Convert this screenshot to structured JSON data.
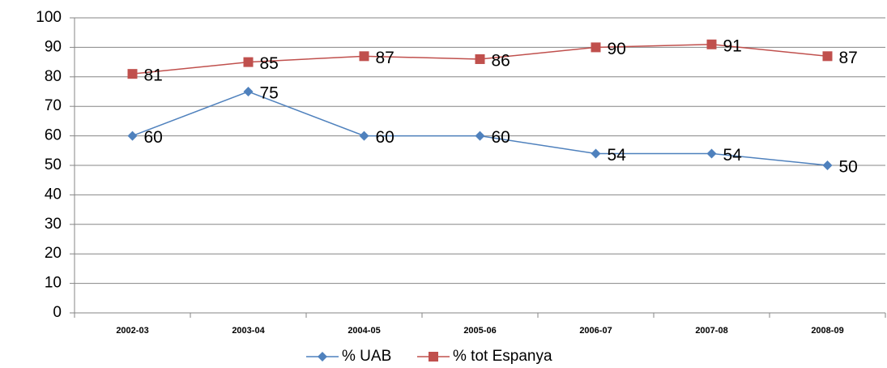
{
  "chart_data": {
    "type": "line",
    "categories": [
      "2002-03",
      "2003-04",
      "2004-05",
      "2005-06",
      "2006-07",
      "2007-08",
      "2008-09"
    ],
    "series": [
      {
        "name": "% UAB",
        "color": "#4f81bd",
        "marker": "diamond",
        "values": [
          60,
          75,
          60,
          60,
          54,
          54,
          50
        ]
      },
      {
        "name": "% tot Espanya",
        "color": "#c0504d",
        "marker": "square",
        "values": [
          81,
          85,
          87,
          86,
          90,
          91,
          87
        ]
      }
    ],
    "ylim": [
      0,
      100
    ],
    "yticks": [
      0,
      10,
      20,
      30,
      40,
      50,
      60,
      70,
      80,
      90,
      100
    ],
    "grid": true,
    "legend": "bottom",
    "data_labels": true
  }
}
